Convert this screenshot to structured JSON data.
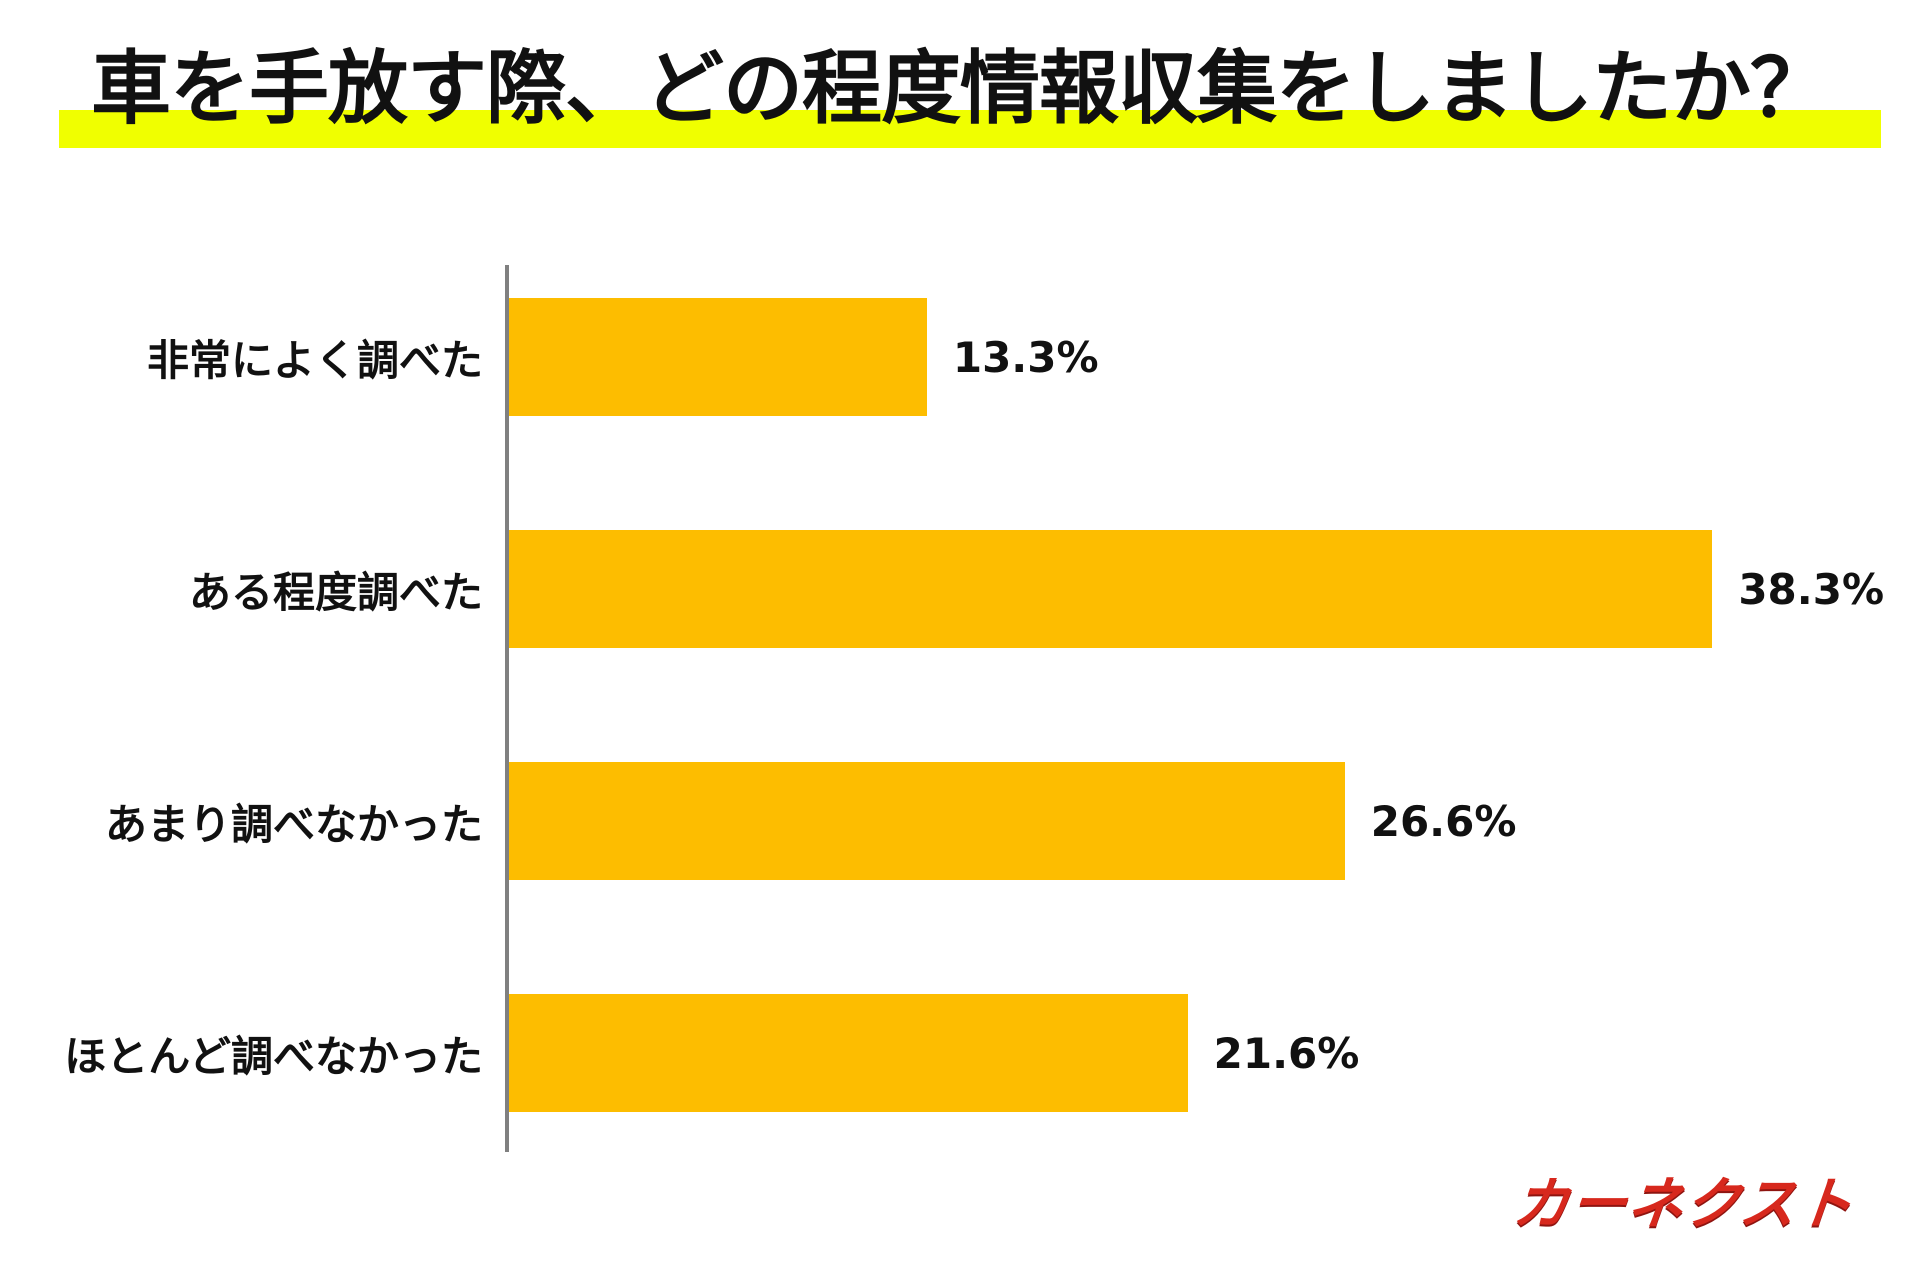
{
  "title": {
    "text": "車を手放す際、どの程度情報収集をしましたか？",
    "highlight_color": "#F0FF00"
  },
  "chart_data": {
    "type": "bar",
    "orientation": "horizontal",
    "title": "車を手放す際、どの程度情報収集をしましたか？",
    "categories": [
      "非常によく調べた",
      "ある程度調べた",
      "あまり調べなかった",
      "ほとんど調べなかった"
    ],
    "values": [
      13.3,
      38.3,
      26.6,
      21.6
    ],
    "value_labels": [
      "13.3%",
      "38.3%",
      "26.6%",
      "21.6%"
    ],
    "unit": "%",
    "bar_color": "#FDBD00",
    "axis_color": "#808080",
    "xlim": [
      0,
      43
    ],
    "grid": false,
    "legend": false,
    "xlabel": "",
    "ylabel": ""
  },
  "footer": {
    "logo_text": "カーネクスト",
    "logo_color": "#D7281D"
  }
}
